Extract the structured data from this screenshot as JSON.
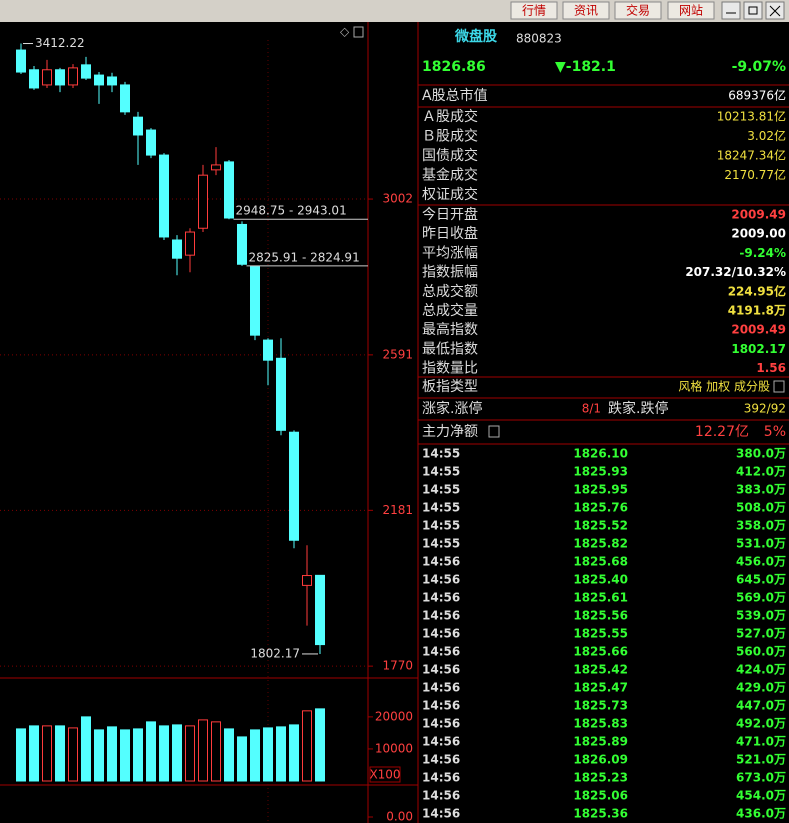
{
  "toolbar": {
    "buttons": [
      "行情",
      "资讯",
      "交易",
      "网站"
    ]
  },
  "chart_data": [
    {
      "type": "candlestick",
      "open": [
        3395,
        3343,
        3303,
        3343,
        3303,
        3356,
        3329,
        3324,
        3303,
        3218,
        3184,
        3118,
        2894,
        2854,
        2925,
        3079,
        3100,
        2935,
        2824,
        2630,
        2582,
        2387,
        1983,
        2009.49
      ],
      "high": [
        3412.22,
        3353,
        3369,
        3348,
        3358,
        3377,
        3337,
        3335,
        3311,
        3232,
        3189,
        3123,
        2907,
        2925,
        3092,
        3139,
        3105,
        2943.01,
        2824.91,
        2635,
        2635,
        2392,
        2089,
        2009.49
      ],
      "low": [
        3332,
        3290,
        3295,
        3284,
        3295,
        3316,
        3253,
        3284,
        3224,
        3092,
        3110,
        2894,
        2801,
        2809,
        2915,
        3065,
        2948.75,
        2825.91,
        2630,
        2511,
        2379,
        2081,
        1877,
        1802.17
      ],
      "close": [
        3337,
        3295,
        3343,
        3303,
        3348,
        3321,
        3303,
        3303,
        3232,
        3171,
        3118,
        2902,
        2846,
        2915,
        3065,
        3092,
        2952,
        2830,
        2643,
        2577,
        2392,
        2102,
        2009,
        1826.86
      ],
      "up_color": "#ff3c3c",
      "down_color": "#54ffff",
      "ylim": [
        1744,
        3469
      ],
      "yticks": [
        3002,
        2591,
        2181,
        1770
      ],
      "grid": true,
      "annotations": [
        {
          "text": "3412.22",
          "value": 3412.22
        },
        {
          "text": "2948.75 - 2943.01",
          "values": [
            2948.75,
            2943.01
          ]
        },
        {
          "text": "2825.91 - 2824.91",
          "values": [
            2825.91,
            2824.91
          ]
        },
        {
          "text": "1802.17",
          "value": 1802.17
        }
      ]
    },
    {
      "type": "bar",
      "values": [
        16250,
        17190,
        17190,
        17190,
        16560,
        20000,
        15940,
        16880,
        15940,
        16250,
        18440,
        17190,
        17500,
        17190,
        19060,
        18440,
        16250,
        13750,
        15940,
        16560,
        16880,
        17500,
        21880,
        22500
      ],
      "ylim": [
        0,
        31500
      ],
      "yticks": [
        20000,
        10000
      ],
      "unit_label": "X100"
    },
    {
      "type": "line",
      "ylim": [
        -0.2,
        0.9
      ],
      "yticks": [
        {
          "value": 0,
          "label": "0.00"
        }
      ]
    }
  ],
  "quote": {
    "name": "微盘股",
    "code": "880823",
    "price": "1826.86",
    "change": "▼-182.1",
    "change_pct": "-9.07%"
  },
  "market_value": {
    "label": "A股总市值",
    "value": "689376亿"
  },
  "turnover": [
    {
      "label": "Ａ股成交",
      "value": "10213.81亿"
    },
    {
      "label": "Ｂ股成交",
      "value": "3.02亿"
    },
    {
      "label": "国债成交",
      "value": "18247.34亿"
    },
    {
      "label": "基金成交",
      "value": "2170.77亿"
    },
    {
      "label": "权证成交"
    }
  ],
  "stats": [
    {
      "label": "今日开盘",
      "value": "2009.49",
      "color": "#ff4040"
    },
    {
      "label": "昨日收盘",
      "value": "2009.00",
      "color": "#ffffff"
    },
    {
      "label": "平均涨幅",
      "value": "-9.24%",
      "color": "#33ff33"
    },
    {
      "label": "指数振幅",
      "value": "207.32/10.32%",
      "color": "#ffffff"
    },
    {
      "label": "总成交额",
      "value": "224.95亿",
      "color": "#f0e040"
    },
    {
      "label": "总成交量",
      "value": "4191.8万",
      "color": "#f0e040"
    },
    {
      "label": "最高指数",
      "value": "2009.49",
      "color": "#ff4040"
    },
    {
      "label": "最低指数",
      "value": "1802.17",
      "color": "#33ff33"
    },
    {
      "label": "指数量比",
      "value": "1.56",
      "color": "#ff4040"
    }
  ],
  "index_type": {
    "label": "板指类型",
    "value": "风格 加权 成分股"
  },
  "breadth": {
    "up_label": "涨家.涨停",
    "up_value": "8/1",
    "down_label": "跌家.跌停",
    "down_value": "392/92"
  },
  "net_flow": {
    "label": "主力净额",
    "value": "12.27亿",
    "pct": "5%"
  },
  "ticks": {
    "rows": [
      [
        "14:55",
        "1826.10",
        "380.0万"
      ],
      [
        "14:55",
        "1825.93",
        "412.0万"
      ],
      [
        "14:55",
        "1825.95",
        "383.0万"
      ],
      [
        "14:55",
        "1825.76",
        "508.0万"
      ],
      [
        "14:55",
        "1825.52",
        "358.0万"
      ],
      [
        "14:55",
        "1825.82",
        "531.0万"
      ],
      [
        "14:56",
        "1825.68",
        "456.0万"
      ],
      [
        "14:56",
        "1825.40",
        "645.0万"
      ],
      [
        "14:56",
        "1825.61",
        "569.0万"
      ],
      [
        "14:56",
        "1825.56",
        "539.0万"
      ],
      [
        "14:56",
        "1825.55",
        "527.0万"
      ],
      [
        "14:56",
        "1825.66",
        "560.0万"
      ],
      [
        "14:56",
        "1825.42",
        "424.0万"
      ],
      [
        "14:56",
        "1825.47",
        "429.0万"
      ],
      [
        "14:56",
        "1825.73",
        "447.0万"
      ],
      [
        "14:56",
        "1825.83",
        "492.0万"
      ],
      [
        "14:56",
        "1825.89",
        "471.0万"
      ],
      [
        "14:56",
        "1826.09",
        "521.0万"
      ],
      [
        "14:56",
        "1825.23",
        "673.0万"
      ],
      [
        "14:56",
        "1825.06",
        "454.0万"
      ],
      [
        "14:56",
        "1825.36",
        "436.0万"
      ]
    ]
  }
}
